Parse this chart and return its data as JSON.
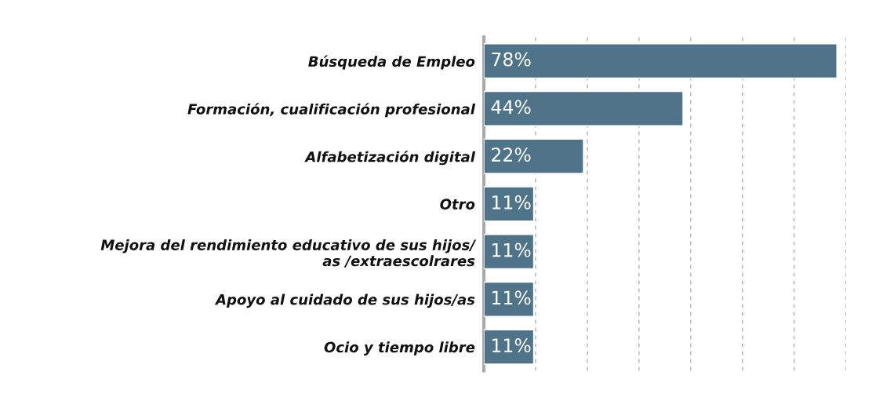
{
  "chart_data": {
    "type": "bar",
    "orientation": "horizontal",
    "categories": [
      "Búsqueda de Empleo",
      "Formación, cualificación profesional",
      "Alfabetización digital",
      "Otro",
      "Mejora del rendimiento educativo de sus hijos/\nas /extraescolrares",
      "Apoyo al cuidado de sus hijos/as",
      "Ocio y tiempo libre"
    ],
    "values": [
      78,
      44,
      22,
      11,
      11,
      11,
      11
    ],
    "value_labels": [
      "78%",
      "44%",
      "22%",
      "11%",
      "11%",
      "11%",
      "11%"
    ],
    "color": "#4f7389",
    "xlim": [
      0,
      80
    ],
    "xticks": [
      {
        "value": 11.43,
        "label": null
      },
      {
        "value": 22.86,
        "label": null
      },
      {
        "value": 34.29,
        "label": null
      },
      {
        "value": 45.71,
        "label": null
      },
      {
        "value": 57.14,
        "label": null
      },
      {
        "value": 68.57,
        "label": null
      },
      {
        "value": 80,
        "label": null
      }
    ],
    "grid": "x",
    "tick_labels": "y",
    "legend": false
  }
}
